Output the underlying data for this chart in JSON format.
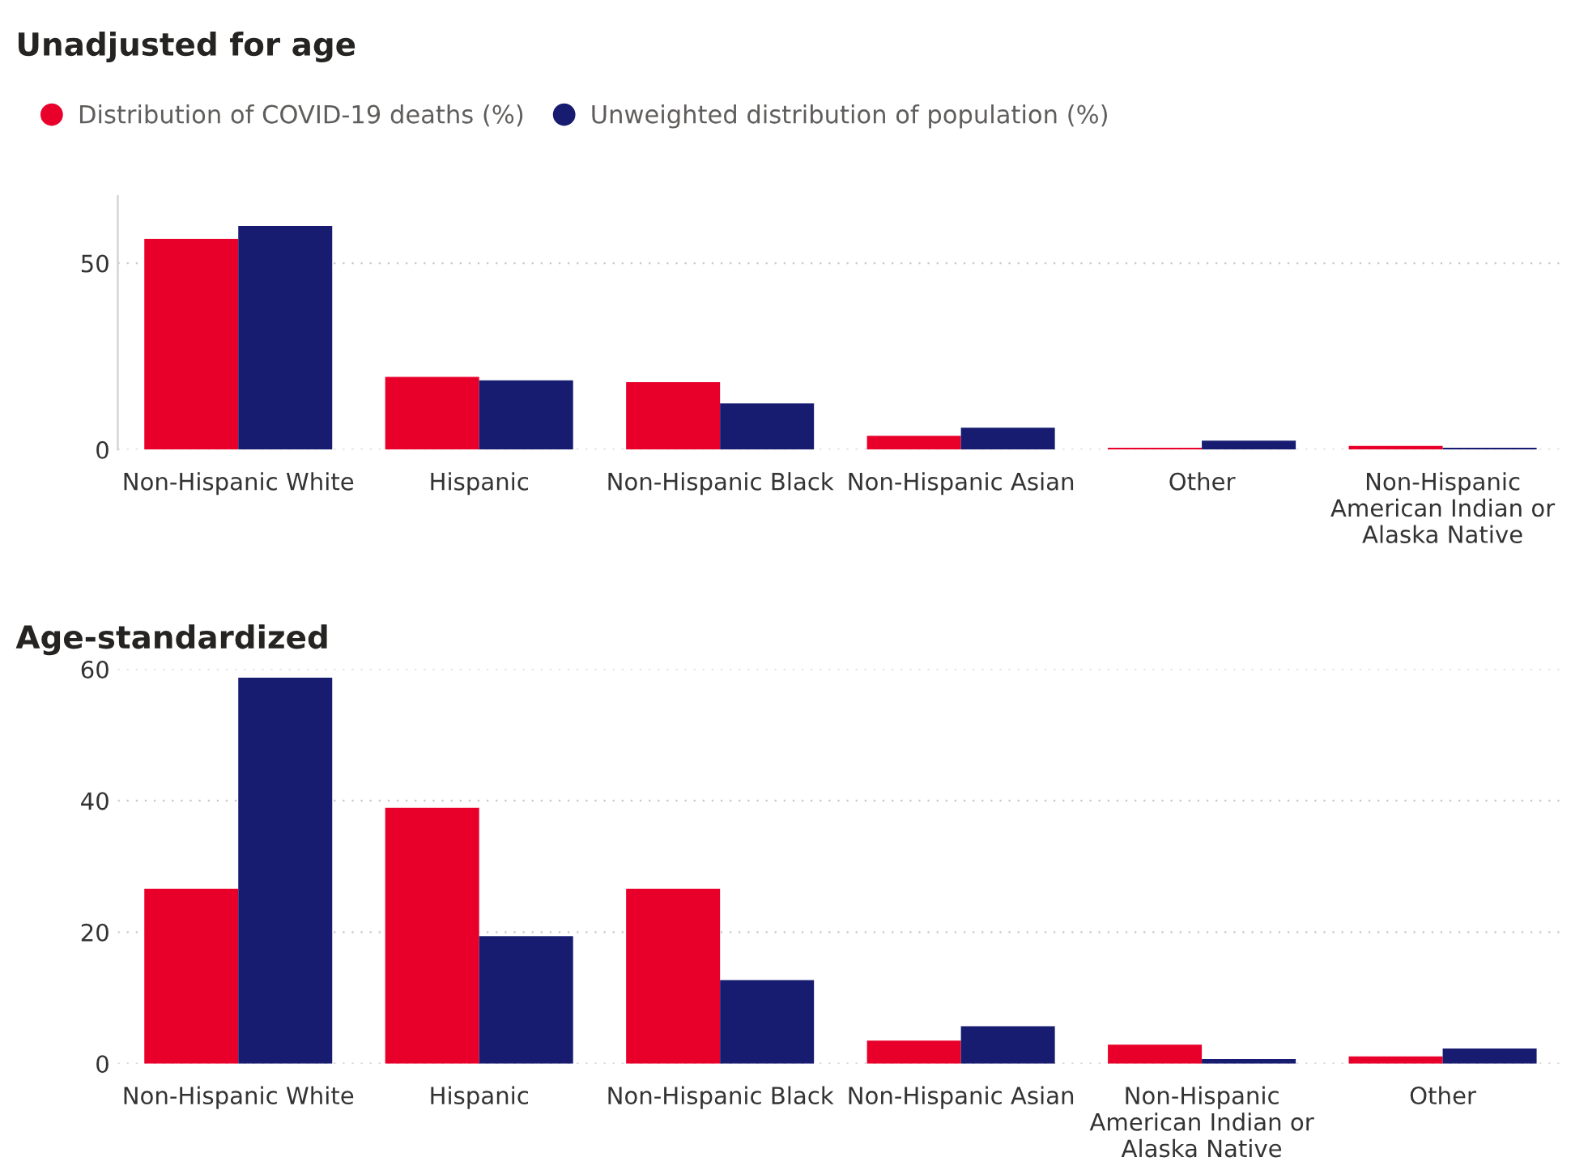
{
  "chart_data": [
    {
      "type": "bar",
      "title": "Unadjusted for age",
      "categories": [
        "Non-Hispanic White",
        "Hispanic",
        "Non-Hispanic Black",
        "Non-Hispanic Asian",
        "Other",
        "Non-Hispanic American Indian or Alaska Native"
      ],
      "series": [
        {
          "name": "Distribution of COVID-19 deaths (%)",
          "color": "#e8002b",
          "values": [
            56.5,
            19.5,
            18.1,
            3.7,
            0.5,
            1.0
          ]
        },
        {
          "name": "Unweighted distribution of population (%)",
          "color": "#171c70",
          "values": [
            60.0,
            18.6,
            12.4,
            5.9,
            2.4,
            0.5
          ]
        }
      ],
      "ylim": [
        0,
        68
      ],
      "yticks": [
        0,
        50
      ],
      "grid": "y",
      "legend": "top left"
    },
    {
      "type": "bar",
      "title": "Age-standardized",
      "categories": [
        "Non-Hispanic White",
        "Hispanic",
        "Non-Hispanic Black",
        "Non-Hispanic Asian",
        "Non-Hispanic American Indian or Alaska Native",
        "Other"
      ],
      "series": [
        {
          "color": "#e8002b",
          "values": [
            26.6,
            38.9,
            26.6,
            3.5,
            2.9,
            1.1
          ]
        },
        {
          "color": "#171c70",
          "values": [
            58.7,
            19.4,
            12.7,
            5.7,
            0.7,
            2.3
          ]
        }
      ],
      "ylim": [
        0,
        60
      ],
      "yticks": [
        0,
        20,
        40,
        60
      ],
      "grid": "y"
    }
  ]
}
